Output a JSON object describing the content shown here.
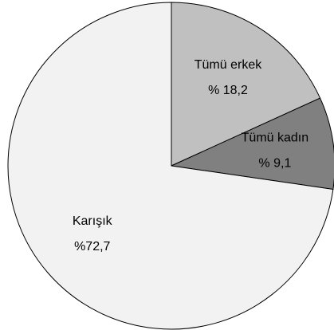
{
  "chart_data": {
    "type": "pie",
    "categories": [
      "Tümü erkek",
      "Tümü kadın",
      "Karışık"
    ],
    "values": [
      18.2,
      9.1,
      72.7
    ],
    "value_labels": [
      "% 18,2",
      "% 9,1",
      "%72,7"
    ],
    "colors": [
      "#c0c0c0",
      "#808080",
      "#f2f2f2"
    ]
  }
}
